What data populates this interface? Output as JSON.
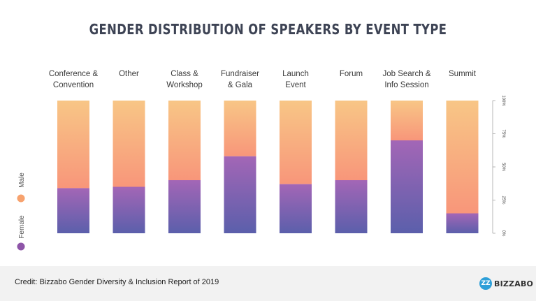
{
  "chart_data": {
    "type": "bar",
    "stacked": true,
    "normalized": true,
    "title": "GENDER DISTRIBUTION OF SPEAKERS BY EVENT TYPE",
    "categories": [
      "Conference & Convention",
      "Other",
      "Class & Workshop",
      "Fundraiser & Gala",
      "Launch Event",
      "Forum",
      "Job Search & Info Session",
      "Summit"
    ],
    "category_label_lines": [
      [
        "Conference &",
        "Convention"
      ],
      [
        "Other"
      ],
      [
        "Class &",
        "Workshop"
      ],
      [
        "Fundraiser",
        "& Gala"
      ],
      [
        "Launch",
        "Event"
      ],
      [
        "Forum"
      ],
      [
        "Job Search &",
        "Info Session"
      ],
      [
        "Summit"
      ]
    ],
    "series": [
      {
        "name": "Female",
        "values": [
          34,
          35,
          40,
          58,
          37,
          40,
          70,
          15
        ],
        "gradient": [
          "#5b5fab",
          "#a366b6"
        ]
      },
      {
        "name": "Male",
        "values": [
          66,
          65,
          60,
          42,
          63,
          60,
          30,
          85
        ],
        "gradient": [
          "#f8967a",
          "#f8c686"
        ]
      }
    ],
    "yticks": [
      "0%",
      "25%",
      "50%",
      "75%",
      "100%"
    ],
    "ylim": [
      0,
      100
    ],
    "legend": {
      "position": "left",
      "items": [
        {
          "label": "Female",
          "color": "#8e55a8"
        },
        {
          "label": "Male",
          "color": "#f7a26e"
        }
      ]
    }
  },
  "footer": {
    "credit": "Credit: Bizzabo Gender Diversity & Inclusion Report of 2019",
    "logo_text": "BIZZABO",
    "logo_mark": "ZZ"
  }
}
